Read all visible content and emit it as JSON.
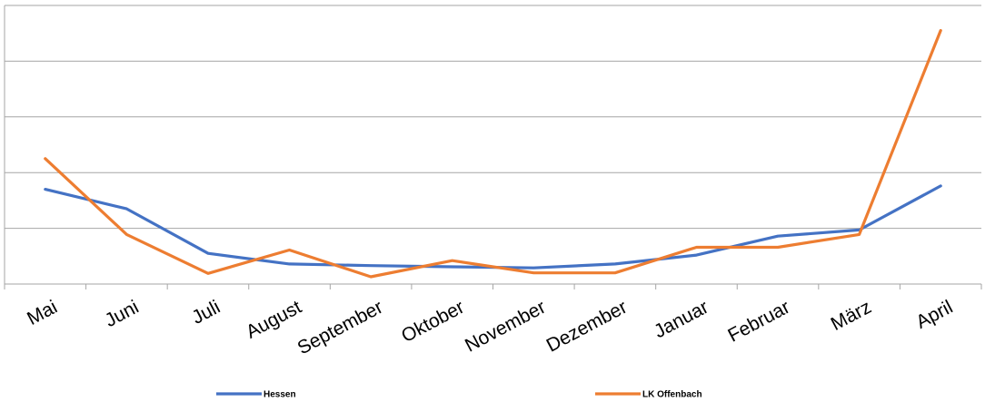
{
  "chart_data": {
    "type": "line",
    "title": "",
    "xlabel": "",
    "ylabel": "",
    "categories": [
      "Mai",
      "Juni",
      "Juli",
      "August",
      "September",
      "Oktober",
      "November",
      "Dezember",
      "Januar",
      "Februar",
      "März",
      "April"
    ],
    "ylim": [
      0,
      5
    ],
    "y_gridlines": [
      1,
      2,
      3,
      4,
      5
    ],
    "y_tick_labels_shown": false,
    "grid": true,
    "legend_position": "bottom",
    "series": [
      {
        "name": "Hessen",
        "color": "#4472C4",
        "values": [
          1.7,
          1.35,
          0.55,
          0.36,
          0.33,
          0.31,
          0.29,
          0.36,
          0.52,
          0.86,
          0.97,
          1.76
        ]
      },
      {
        "name": "LK Offenbach",
        "color": "#ED7D31",
        "values": [
          2.25,
          0.89,
          0.19,
          0.61,
          0.13,
          0.42,
          0.2,
          0.2,
          0.66,
          0.66,
          0.89,
          4.55
        ]
      }
    ]
  }
}
